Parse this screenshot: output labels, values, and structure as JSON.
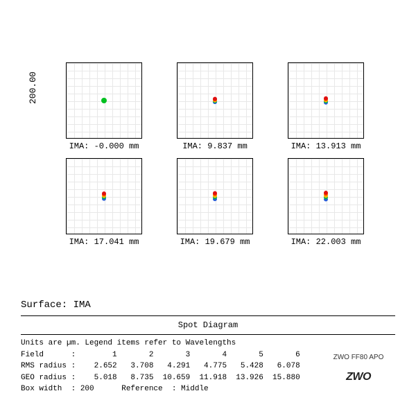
{
  "diagram": {
    "title": "Spot Diagram",
    "surface_label": "Surface: IMA",
    "y_axis": "200.00",
    "box_width_um": 200,
    "grid_divisions": 10,
    "wavelength_colors": [
      "#2a5fd8",
      "#00b050",
      "#ffc000",
      "#ff6a00",
      "#e01010"
    ],
    "spots": [
      {
        "ima_mm": "-0.000",
        "spread": 0.0,
        "center_color": "#00c020"
      },
      {
        "ima_mm": "9.837",
        "spread": 1.8
      },
      {
        "ima_mm": "13.913",
        "spread": 2.4
      },
      {
        "ima_mm": "17.041",
        "spread": 3.0
      },
      {
        "ima_mm": "19.679",
        "spread": 3.4
      },
      {
        "ima_mm": "22.003",
        "spread": 3.8
      }
    ]
  },
  "info": {
    "units_line": "Units are µm. Legend items refer to Wavelengths",
    "field_label": "Field      :        1       2       3       4       5       6",
    "rms_label": "RMS radius :    2.652   3.708   4.291   4.775   5.428   6.078",
    "geo_label": "GEO radius :    5.018   8.735  10.659  11.918  13.926  15.880",
    "box_label": "Box width  : 200      Reference  : Middle"
  },
  "branding": {
    "product": "ZWO FF80 APO",
    "brand": "ZWO"
  },
  "colors": {
    "background": "#ffffff",
    "grid": "#e8e8e8",
    "border": "#000000",
    "text": "#000000"
  },
  "typography": {
    "mono_family": "Courier New",
    "label_size_pt": 12,
    "data_size_pt": 11
  }
}
